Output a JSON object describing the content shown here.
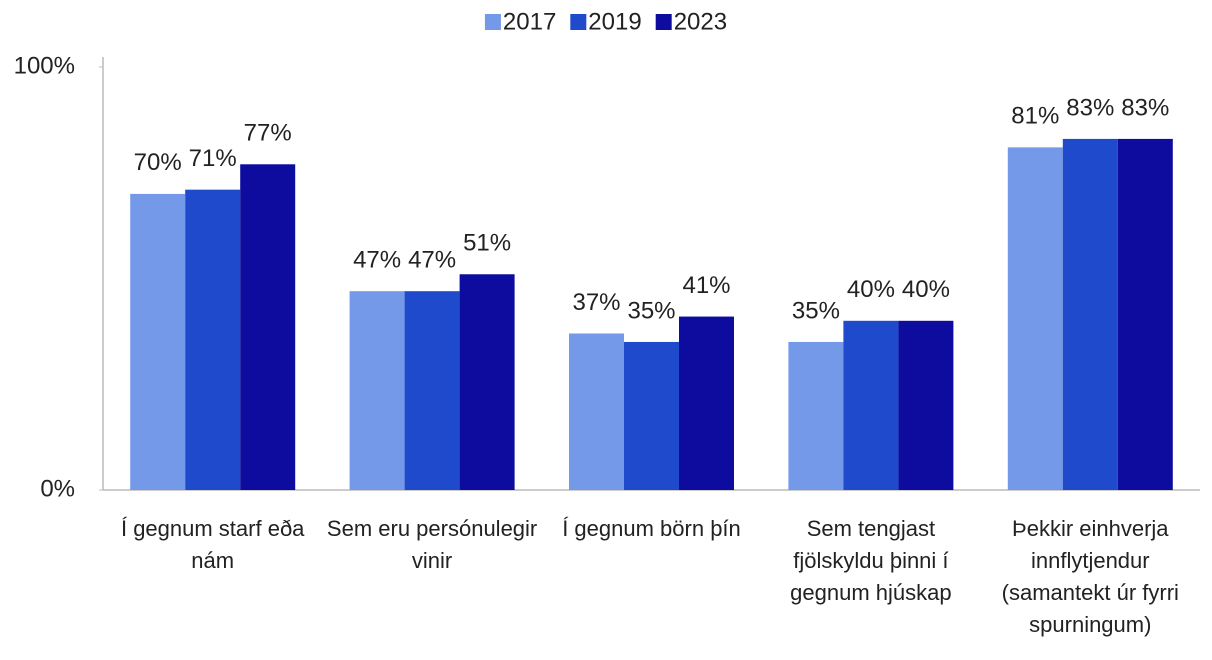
{
  "chart_data": {
    "type": "bar",
    "categories": [
      "Í gegnum starf eða nám",
      "Sem eru persónulegir vinir",
      "Í gegnum börn þín",
      "Sem tengjast fjölskyldu þinni í gegnum hjúskap",
      "Þekkir einhverja innflytjendur (samantekt úr fyrri spurningum)"
    ],
    "series": [
      {
        "name": "2017",
        "color": "#7499e8",
        "values": [
          70,
          47,
          37,
          35,
          81
        ],
        "value_labels": [
          "70%",
          "47%",
          "37%",
          "35%",
          "81%"
        ]
      },
      {
        "name": "2019",
        "color": "#1f4acc",
        "values": [
          71,
          47,
          35,
          40,
          83
        ],
        "value_labels": [
          "71%",
          "47%",
          "35%",
          "40%",
          "83%"
        ]
      },
      {
        "name": "2023",
        "color": "#0e0c9e",
        "values": [
          77,
          51,
          41,
          40,
          83
        ],
        "value_labels": [
          "77%",
          "51%",
          "41%",
          "40%",
          "83%"
        ]
      }
    ],
    "ylim": [
      0,
      100
    ],
    "yticks": [
      {
        "value": 0,
        "label": "0%"
      },
      {
        "value": 100,
        "label": "100%"
      }
    ],
    "legend": "top"
  }
}
